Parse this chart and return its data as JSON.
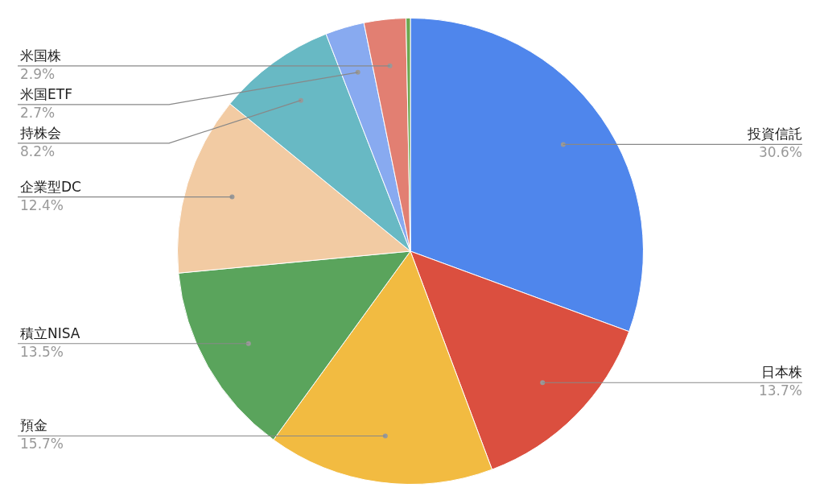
{
  "chart_data": {
    "type": "pie",
    "categories": [
      "投資信託",
      "日本株",
      "預金",
      "積立NISA",
      "企業型DC",
      "持株会",
      "米国ETF",
      "米国株",
      null
    ],
    "values": [
      30.6,
      13.7,
      15.7,
      13.5,
      12.4,
      8.2,
      2.7,
      2.9,
      0.3
    ],
    "value_labels": [
      "30.6%",
      "13.7%",
      "15.7%",
      "13.5%",
      "12.4%",
      "8.2%",
      "2.7%",
      "2.9%",
      null
    ],
    "colors": [
      "#4f86ec",
      "#db4f3f",
      "#f2bb41",
      "#5aa45c",
      "#f2cba3",
      "#68b9c4",
      "#88aaf0",
      "#e27f72",
      "#6aa84f"
    ],
    "legend": false
  }
}
